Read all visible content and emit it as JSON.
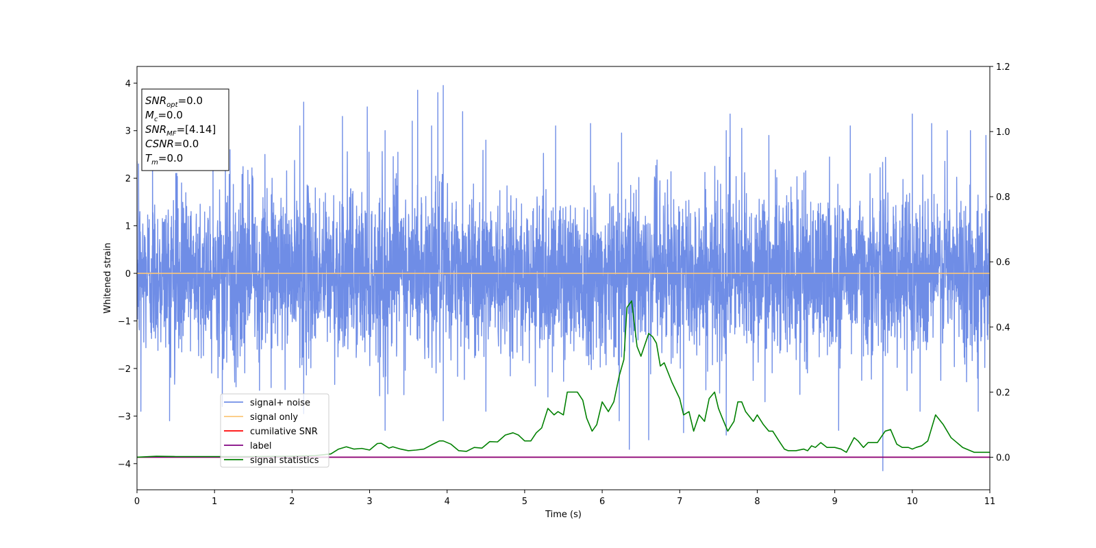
{
  "chart_data": {
    "type": "line",
    "xlabel": "Time (s)",
    "ylabel": "Whitened strain",
    "xlim": [
      0,
      11
    ],
    "ylim": [
      -4.55,
      4.35
    ],
    "y2lim": [
      -0.1,
      1.2
    ],
    "xticks": [
      0,
      1,
      2,
      3,
      4,
      5,
      6,
      7,
      8,
      9,
      10,
      11
    ],
    "xtick_labels": [
      "0",
      "1",
      "2",
      "3",
      "4",
      "5",
      "6",
      "7",
      "8",
      "9",
      "10",
      "11"
    ],
    "yticks": [
      4,
      3,
      2,
      1,
      0,
      -1,
      -2,
      -3,
      -4
    ],
    "ytick_labels": [
      "4",
      "3",
      "2",
      "1",
      "0",
      "−1",
      "−2",
      "−3",
      "−4"
    ],
    "y2ticks": [
      1.2,
      1.0,
      0.8,
      0.6,
      0.4,
      0.2,
      0.0
    ],
    "y2tick_labels": [
      "1.2",
      "1.0",
      "0.8",
      "0.6",
      "0.4",
      "0.2",
      "0.0"
    ],
    "grid": false,
    "legend_position": "lower-left",
    "annotation": {
      "lines": [
        {
          "main": "SNR",
          "sub": "opt",
          "value": "=0.0"
        },
        {
          "main": "M",
          "sub": "c",
          "value": "=0.0"
        },
        {
          "main": "SNR",
          "sub": "MF",
          "value": "=[4.14]"
        },
        {
          "main": "CSNR",
          "sub": "",
          "value": "=0.0"
        },
        {
          "main": "T",
          "sub": "m",
          "value": "=0.0"
        }
      ]
    },
    "series": [
      {
        "name": "signal+ noise",
        "color": "#6f8de6",
        "axis": "left",
        "style": "noise",
        "noise_std": 0.85,
        "peaks": [
          [
            0.02,
            2.3
          ],
          [
            0.2,
            2.5
          ],
          [
            0.5,
            2.1
          ],
          [
            0.98,
            2.5
          ],
          [
            1.2,
            2.6
          ],
          [
            1.65,
            2.5
          ],
          [
            2.1,
            3.1
          ],
          [
            2.15,
            3.6
          ],
          [
            2.65,
            3.3
          ],
          [
            2.97,
            3.5
          ],
          [
            3.2,
            3.0
          ],
          [
            3.55,
            3.2
          ],
          [
            3.62,
            3.85
          ],
          [
            3.8,
            3.1
          ],
          [
            3.88,
            3.8
          ],
          [
            3.95,
            3.95
          ],
          [
            4.2,
            3.4
          ],
          [
            4.5,
            2.8
          ],
          [
            5.4,
            3.1
          ],
          [
            5.85,
            3.15
          ],
          [
            6.25,
            2.95
          ],
          [
            7.6,
            3.0
          ],
          [
            7.65,
            3.35
          ],
          [
            7.8,
            3.05
          ],
          [
            8.15,
            2.9
          ],
          [
            9.2,
            3.1
          ],
          [
            10.0,
            3.35
          ],
          [
            10.25,
            3.15
          ],
          [
            10.45,
            3.0
          ],
          [
            10.75,
            3.0
          ],
          [
            10.95,
            2.9
          ]
        ],
        "troughs": [
          [
            0.05,
            -2.9
          ],
          [
            0.42,
            -3.1
          ],
          [
            1.1,
            -2.8
          ],
          [
            2.15,
            -2.95
          ],
          [
            3.2,
            -3.3
          ],
          [
            3.95,
            -3.1
          ],
          [
            4.5,
            -2.9
          ],
          [
            5.3,
            -2.6
          ],
          [
            6.22,
            -3.1
          ],
          [
            6.35,
            -3.7
          ],
          [
            6.6,
            -3.5
          ],
          [
            7.05,
            -3.35
          ],
          [
            7.6,
            -3.4
          ],
          [
            8.1,
            -2.7
          ],
          [
            9.05,
            -3.3
          ],
          [
            9.62,
            -4.15
          ],
          [
            10.1,
            -2.9
          ],
          [
            10.85,
            -2.9
          ]
        ]
      },
      {
        "name": "signal only",
        "color": "#fcc77a",
        "axis": "left",
        "x": [
          0,
          11
        ],
        "values": [
          0,
          0
        ]
      },
      {
        "name": "cumilative SNR",
        "color": "#ff0000",
        "axis": "right",
        "x": [
          0,
          11
        ],
        "values": [
          0,
          0
        ]
      },
      {
        "name": "label",
        "color": "#800080",
        "axis": "right",
        "x": [
          0,
          11
        ],
        "values": [
          0,
          0
        ]
      },
      {
        "name": "signal statistics",
        "color": "#008000",
        "axis": "right",
        "x": [
          0,
          0.25,
          0.5,
          1.0,
          1.5,
          2.0,
          2.3,
          2.5,
          2.6,
          2.7,
          2.8,
          2.9,
          3.0,
          3.1,
          3.15,
          3.25,
          3.3,
          3.4,
          3.5,
          3.6,
          3.7,
          3.8,
          3.9,
          3.95,
          4.05,
          4.15,
          4.25,
          4.35,
          4.45,
          4.55,
          4.65,
          4.75,
          4.85,
          4.92,
          5.0,
          5.08,
          5.15,
          5.22,
          5.3,
          5.38,
          5.43,
          5.5,
          5.55,
          5.62,
          5.68,
          5.75,
          5.8,
          5.87,
          5.93,
          6.0,
          6.08,
          6.15,
          6.22,
          6.28,
          6.32,
          6.38,
          6.45,
          6.5,
          6.6,
          6.65,
          6.7,
          6.75,
          6.8,
          6.9,
          7.0,
          7.05,
          7.12,
          7.18,
          7.25,
          7.32,
          7.38,
          7.45,
          7.5,
          7.55,
          7.62,
          7.7,
          7.75,
          7.8,
          7.85,
          7.95,
          8.0,
          8.08,
          8.15,
          8.2,
          8.28,
          8.35,
          8.4,
          8.5,
          8.6,
          8.65,
          8.7,
          8.75,
          8.82,
          8.9,
          9.0,
          9.08,
          9.15,
          9.25,
          9.3,
          9.37,
          9.43,
          9.55,
          9.65,
          9.72,
          9.8,
          9.87,
          9.95,
          10.0,
          10.05,
          10.12,
          10.2,
          10.3,
          10.4,
          10.5,
          10.65,
          10.8,
          11.0
        ],
        "values": [
          0.0,
          0.003,
          0.002,
          0.002,
          0.002,
          0.003,
          0.005,
          0.01,
          0.025,
          0.032,
          0.025,
          0.027,
          0.022,
          0.042,
          0.043,
          0.028,
          0.032,
          0.025,
          0.02,
          0.022,
          0.025,
          0.038,
          0.05,
          0.05,
          0.04,
          0.02,
          0.018,
          0.03,
          0.028,
          0.048,
          0.047,
          0.068,
          0.075,
          0.068,
          0.05,
          0.05,
          0.075,
          0.09,
          0.15,
          0.13,
          0.14,
          0.13,
          0.2,
          0.2,
          0.2,
          0.175,
          0.12,
          0.08,
          0.1,
          0.17,
          0.14,
          0.17,
          0.25,
          0.3,
          0.46,
          0.48,
          0.34,
          0.31,
          0.38,
          0.37,
          0.35,
          0.28,
          0.29,
          0.23,
          0.18,
          0.13,
          0.14,
          0.08,
          0.13,
          0.11,
          0.18,
          0.2,
          0.15,
          0.12,
          0.08,
          0.11,
          0.17,
          0.17,
          0.14,
          0.11,
          0.13,
          0.1,
          0.08,
          0.08,
          0.05,
          0.025,
          0.02,
          0.02,
          0.025,
          0.02,
          0.035,
          0.03,
          0.045,
          0.03,
          0.03,
          0.025,
          0.015,
          0.06,
          0.05,
          0.03,
          0.045,
          0.045,
          0.08,
          0.085,
          0.04,
          0.03,
          0.03,
          0.025,
          0.03,
          0.035,
          0.05,
          0.13,
          0.1,
          0.06,
          0.03,
          0.015,
          0.015
        ]
      }
    ]
  }
}
